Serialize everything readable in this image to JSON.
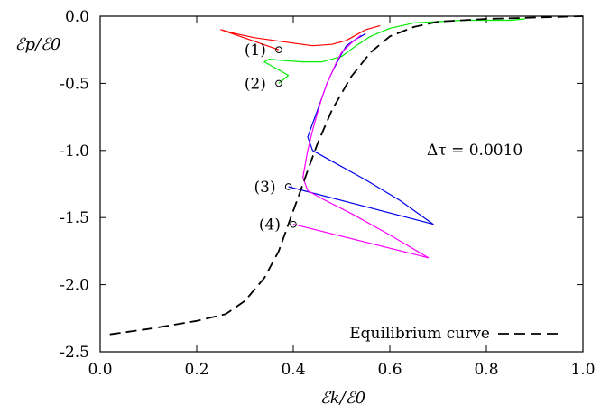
{
  "chart_data": {
    "type": "line",
    "xlabel": "ℰk/ℰ0",
    "ylabel": "ℰp/ℰ0",
    "xlim": [
      0.0,
      1.0
    ],
    "ylim": [
      -2.5,
      0.0
    ],
    "x_ticks": [
      0.0,
      0.2,
      0.4,
      0.6,
      0.8,
      1.0
    ],
    "x_tick_labels": [
      "0.0",
      "0.2",
      "0.4",
      "0.6",
      "0.8",
      "1.0"
    ],
    "y_ticks": [
      0.0,
      -0.5,
      -1.0,
      -1.5,
      -2.0,
      -2.5
    ],
    "y_tick_labels": [
      "0.0",
      "-0.5",
      "-1.0",
      "-1.5",
      "-2.0",
      "-2.5"
    ],
    "annotation_text": "Δτ = 0.0010",
    "legend": {
      "label": "Equilibrium curve",
      "position": "bottom-right"
    },
    "series": [
      {
        "label": "(1)",
        "color": "#ff0000",
        "start": [
          0.37,
          -0.25
        ],
        "x": [
          0.25,
          0.28,
          0.32,
          0.36,
          0.4,
          0.44,
          0.48,
          0.51,
          0.53,
          0.55,
          0.58
        ],
        "y": [
          -0.1,
          -0.13,
          -0.16,
          -0.18,
          -0.2,
          -0.22,
          -0.21,
          -0.18,
          -0.14,
          -0.1,
          -0.07
        ]
      },
      {
        "label": "(2)",
        "color": "#00ee00",
        "start": [
          0.37,
          -0.5
        ],
        "x": [
          0.39,
          0.37,
          0.34,
          0.35,
          0.38,
          0.42,
          0.46,
          0.5,
          0.53,
          0.56,
          0.6,
          0.65,
          0.7,
          0.75,
          0.8,
          0.85,
          0.88
        ],
        "y": [
          -0.44,
          -0.4,
          -0.34,
          -0.32,
          -0.33,
          -0.34,
          -0.34,
          -0.3,
          -0.22,
          -0.15,
          -0.09,
          -0.05,
          -0.04,
          -0.03,
          -0.03,
          -0.03,
          -0.02
        ]
      },
      {
        "label": "(3)",
        "color": "#0000ee",
        "start": [
          0.39,
          -1.27
        ],
        "x": [
          0.69,
          0.62,
          0.55,
          0.49,
          0.44,
          0.43,
          0.44,
          0.45,
          0.46,
          0.47,
          0.48,
          0.49,
          0.5,
          0.51,
          0.53,
          0.55
        ],
        "y": [
          -1.55,
          -1.37,
          -1.22,
          -1.1,
          -1.0,
          -0.9,
          -0.8,
          -0.7,
          -0.6,
          -0.5,
          -0.42,
          -0.35,
          -0.28,
          -0.22,
          -0.17,
          -0.13
        ]
      },
      {
        "label": "(4)",
        "color": "#ff00ff",
        "start": [
          0.4,
          -1.55
        ],
        "x": [
          0.68,
          0.6,
          0.52,
          0.46,
          0.43,
          0.42,
          0.43,
          0.44,
          0.45,
          0.46,
          0.47,
          0.48,
          0.49,
          0.5,
          0.52,
          0.54
        ],
        "y": [
          -1.8,
          -1.63,
          -1.47,
          -1.36,
          -1.3,
          -1.2,
          -1.0,
          -0.85,
          -0.72,
          -0.6,
          -0.5,
          -0.42,
          -0.34,
          -0.27,
          -0.2,
          -0.14
        ]
      },
      {
        "label": "Equilibrium curve",
        "color": "#000000",
        "dashed": true,
        "x": [
          0.02,
          0.1,
          0.2,
          0.26,
          0.3,
          0.34,
          0.37,
          0.39,
          0.41,
          0.43,
          0.45,
          0.48,
          0.52,
          0.56,
          0.6,
          0.65,
          0.7,
          0.8,
          0.9,
          1.0
        ],
        "y": [
          -2.37,
          -2.33,
          -2.27,
          -2.22,
          -2.12,
          -1.95,
          -1.75,
          -1.55,
          -1.35,
          -1.15,
          -0.95,
          -0.7,
          -0.45,
          -0.27,
          -0.15,
          -0.08,
          -0.04,
          -0.02,
          -0.01,
          0.0
        ]
      }
    ]
  }
}
